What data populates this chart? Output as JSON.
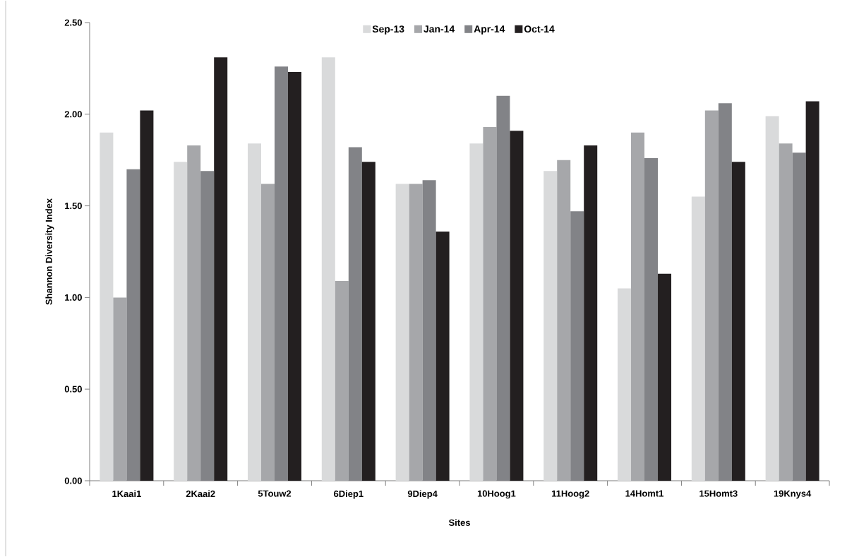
{
  "chart_data": {
    "type": "bar",
    "xlabel": "Sites",
    "ylabel": "Shannon Diversity Index",
    "categories": [
      "1Kaai1",
      "2Kaai2",
      "5Touw2",
      "6Diep1",
      "9Diep4",
      "10Hoog1",
      "11Hoog2",
      "14Homt1",
      "15Homt3",
      "19Knys4"
    ],
    "series": [
      {
        "name": "Sep-13",
        "color": "#d9dadb",
        "values": [
          1.9,
          1.74,
          1.84,
          2.31,
          1.62,
          1.84,
          1.69,
          1.05,
          1.55,
          1.99
        ]
      },
      {
        "name": "Jan-14",
        "color": "#a6a7aa",
        "values": [
          1.0,
          1.83,
          1.62,
          1.09,
          1.62,
          1.93,
          1.75,
          1.9,
          2.02,
          1.84
        ]
      },
      {
        "name": "Apr-14",
        "color": "#828387",
        "values": [
          1.7,
          1.69,
          2.26,
          1.82,
          1.64,
          2.1,
          1.47,
          1.76,
          2.06,
          1.79
        ]
      },
      {
        "name": "Oct-14",
        "color": "#231f20",
        "values": [
          2.02,
          2.31,
          2.23,
          1.74,
          1.36,
          1.91,
          1.83,
          1.13,
          1.74,
          2.07
        ]
      }
    ],
    "ylim": [
      0,
      2.5
    ],
    "yticks": [
      {
        "value": 0,
        "label": "0.00"
      },
      {
        "value": 0.5,
        "label": "0.50"
      },
      {
        "value": 1,
        "label": "1.00"
      },
      {
        "value": 1.5,
        "label": "1.50"
      },
      {
        "value": 2,
        "label": "2.00"
      },
      {
        "value": 2.5,
        "label": "2.50"
      }
    ],
    "grid": false,
    "legend": "top"
  }
}
